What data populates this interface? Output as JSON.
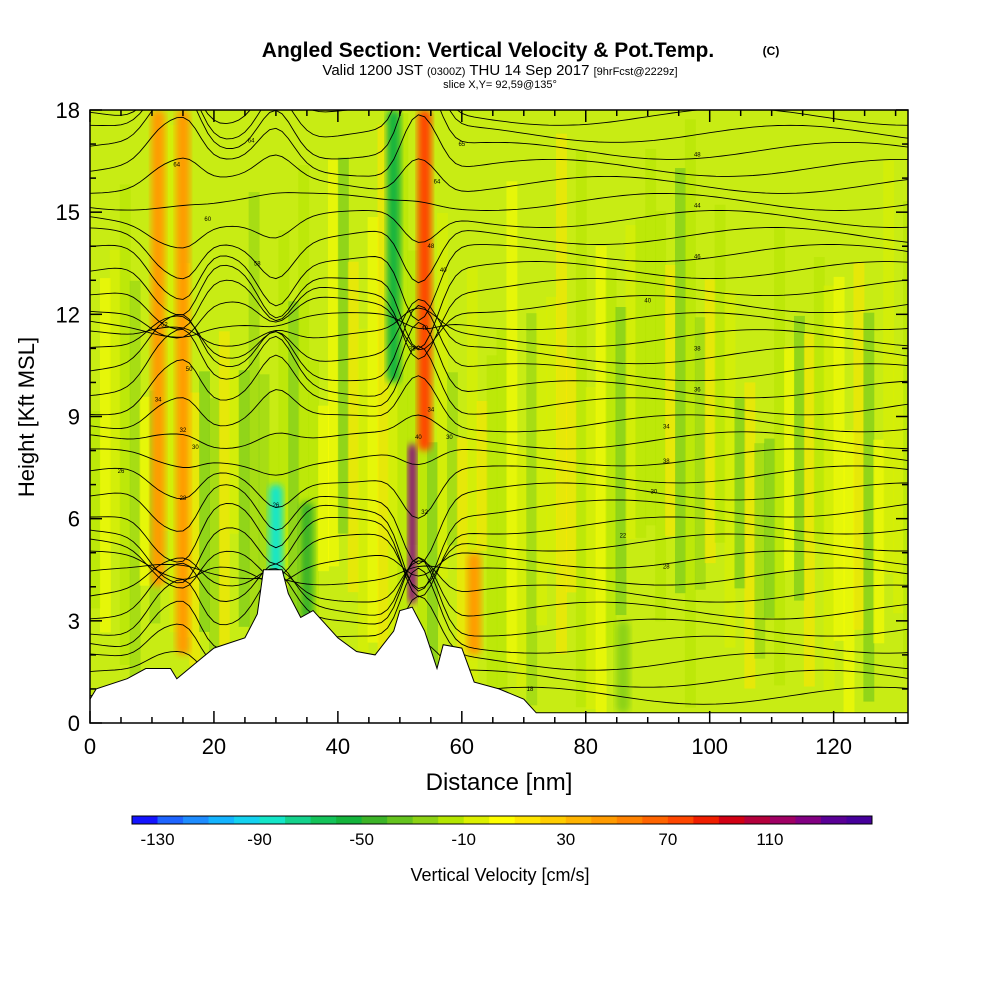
{
  "chart_data": {
    "type": "heatmap",
    "title": "Angled Section: Vertical Velocity & Pot.Temp.",
    "title_unit_tag": "(C)",
    "subtitle_parts": [
      "Valid 1200 JST",
      "(0300Z)",
      "THU 14 Sep 2017",
      "[9hrFcst@2229z]"
    ],
    "slice_label": "slice X,Y= 92,59@135°",
    "xlabel": "Distance [nm]",
    "ylabel": "Height [Kft MSL]",
    "xlim": [
      0,
      132
    ],
    "ylim": [
      0,
      18
    ],
    "x_ticks": [
      0,
      20,
      40,
      60,
      80,
      100,
      120
    ],
    "y_ticks": [
      0,
      3,
      6,
      9,
      12,
      15,
      18
    ],
    "grid": false,
    "legend_position": "bottom",
    "colorbar": {
      "label": "Vertical Velocity [cm/s]",
      "tick_labels": [
        "-130",
        "-90",
        "-50",
        "-10",
        "30",
        "70",
        "110"
      ],
      "range": [
        -140,
        150
      ],
      "step": 10,
      "colors": [
        "#1414ff",
        "#1e64ff",
        "#1e8cff",
        "#14b4ff",
        "#14d2f0",
        "#14e6c8",
        "#14d28c",
        "#14c35a",
        "#14b43c",
        "#3cb428",
        "#64c31e",
        "#8cd214",
        "#b4e600",
        "#dcf000",
        "#ffff00",
        "#ffe600",
        "#ffcd00",
        "#ffb400",
        "#ff9b00",
        "#ff8200",
        "#ff6400",
        "#ff4600",
        "#f01e00",
        "#d20014",
        "#b4003c",
        "#a00064",
        "#820082",
        "#5a0096",
        "#46009b"
      ]
    },
    "terrain_kft": [
      [
        0,
        0.7
      ],
      [
        1,
        1.0
      ],
      [
        6,
        1.3
      ],
      [
        9,
        1.6
      ],
      [
        13,
        1.6
      ],
      [
        14,
        1.3
      ],
      [
        18,
        1.9
      ],
      [
        20,
        2.2
      ],
      [
        25,
        2.5
      ],
      [
        27,
        3.2
      ],
      [
        28,
        4.5
      ],
      [
        31,
        4.5
      ],
      [
        32,
        3.8
      ],
      [
        34,
        3.1
      ],
      [
        36,
        3.3
      ],
      [
        38,
        2.9
      ],
      [
        40,
        2.5
      ],
      [
        43,
        2.1
      ],
      [
        46,
        2.0
      ],
      [
        49,
        2.7
      ],
      [
        50,
        3.3
      ],
      [
        52,
        3.4
      ],
      [
        54,
        2.7
      ],
      [
        56,
        1.6
      ],
      [
        57,
        2.3
      ],
      [
        60,
        2.2
      ],
      [
        62,
        1.2
      ],
      [
        66,
        1.0
      ],
      [
        70,
        0.7
      ],
      [
        72,
        0.3
      ],
      [
        132,
        0.3
      ]
    ],
    "vertical_velocity_features": [
      {
        "x": 52,
        "z_range": [
          3.5,
          8.2
        ],
        "value": 120
      },
      {
        "x": 54,
        "z_range": [
          8.0,
          18.0
        ],
        "value": 70
      },
      {
        "x": 30,
        "z_range": [
          3.5,
          7.0
        ],
        "value": -90
      },
      {
        "x": 35,
        "z_range": [
          3.0,
          6.5
        ],
        "value": -45
      },
      {
        "x": 49,
        "z_range": [
          10.0,
          18.0
        ],
        "value": -55
      },
      {
        "x": 11,
        "z_range": [
          4.0,
          18.0
        ],
        "value": 40
      },
      {
        "x": 15,
        "z_range": [
          2.0,
          18.0
        ],
        "value": 40
      },
      {
        "x": 62,
        "z_range": [
          2.0,
          5.0
        ],
        "value": 45
      },
      {
        "x": 86,
        "z_range": [
          0.3,
          3.0
        ],
        "value": -30
      }
    ],
    "potential_temperature_contours": {
      "units": "C",
      "labels": [
        {
          "x": 5,
          "z": 7.4,
          "text": "26"
        },
        {
          "x": 11,
          "z": 9.5,
          "text": "34"
        },
        {
          "x": 15,
          "z": 8.6,
          "text": "32"
        },
        {
          "x": 15,
          "z": 6.6,
          "text": "28"
        },
        {
          "x": 17,
          "z": 8.1,
          "text": "30"
        },
        {
          "x": 12,
          "z": 11.7,
          "text": "52"
        },
        {
          "x": 16,
          "z": 10.4,
          "text": "50"
        },
        {
          "x": 14,
          "z": 16.4,
          "text": "64"
        },
        {
          "x": 19,
          "z": 14.8,
          "text": "60"
        },
        {
          "x": 27,
          "z": 13.5,
          "text": "58"
        },
        {
          "x": 26,
          "z": 17.1,
          "text": "64"
        },
        {
          "x": 30,
          "z": 6.4,
          "text": "26"
        },
        {
          "x": 52,
          "z": 11.0,
          "text": "38"
        },
        {
          "x": 53,
          "z": 8.4,
          "text": "40"
        },
        {
          "x": 54,
          "z": 6.2,
          "text": "32"
        },
        {
          "x": 54,
          "z": 11.6,
          "text": "49"
        },
        {
          "x": 55,
          "z": 9.2,
          "text": "34"
        },
        {
          "x": 55,
          "z": 14.0,
          "text": "48"
        },
        {
          "x": 56,
          "z": 15.9,
          "text": "64"
        },
        {
          "x": 57,
          "z": 13.3,
          "text": "40"
        },
        {
          "x": 58,
          "z": 8.4,
          "text": "30"
        },
        {
          "x": 60,
          "z": 17.0,
          "text": "65"
        },
        {
          "x": 71,
          "z": 1.0,
          "text": "18"
        },
        {
          "x": 86,
          "z": 5.5,
          "text": "22"
        },
        {
          "x": 90,
          "z": 12.4,
          "text": "40"
        },
        {
          "x": 91,
          "z": 6.8,
          "text": "30"
        },
        {
          "x": 93,
          "z": 8.7,
          "text": "34"
        },
        {
          "x": 93,
          "z": 4.6,
          "text": "28"
        },
        {
          "x": 93,
          "z": 7.7,
          "text": "38"
        },
        {
          "x": 98,
          "z": 16.7,
          "text": "48"
        },
        {
          "x": 98,
          "z": 15.2,
          "text": "44"
        },
        {
          "x": 98,
          "z": 13.7,
          "text": "46"
        },
        {
          "x": 98,
          "z": 11.0,
          "text": "38"
        },
        {
          "x": 98,
          "z": 9.8,
          "text": "36"
        }
      ]
    }
  }
}
